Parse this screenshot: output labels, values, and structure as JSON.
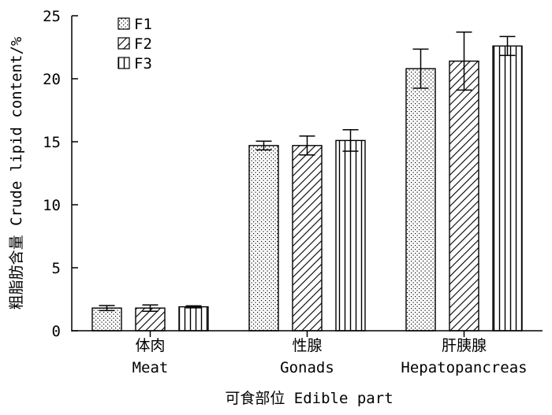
{
  "chart_data": {
    "type": "bar",
    "categories": [
      "体肉",
      "性腺",
      "肝胰腺"
    ],
    "categories_en": [
      "Meat",
      "Gonads",
      "Hepatopancreas"
    ],
    "series": [
      {
        "name": "F1",
        "values": [
          1.8,
          14.7,
          20.8
        ],
        "errors": [
          0.2,
          0.35,
          1.55
        ],
        "pattern": "dots"
      },
      {
        "name": "F2",
        "values": [
          1.8,
          14.7,
          21.4
        ],
        "errors": [
          0.25,
          0.75,
          2.3
        ],
        "pattern": "diagonal-hatch"
      },
      {
        "name": "F3",
        "values": [
          1.9,
          15.1,
          22.6
        ],
        "errors": [
          0.08,
          0.85,
          0.75
        ],
        "pattern": "vertical-stripes"
      }
    ],
    "xlabel": "可食部位 Edible part",
    "ylabel": "粗脂肪含量 Crude lipid content/%",
    "ylim": [
      0,
      25
    ],
    "yticks": [
      0,
      5,
      10,
      15,
      20,
      25
    ],
    "legend_position": "top-left",
    "grid": false,
    "bar_color": "#ffffff",
    "edge_color": "#000000"
  }
}
